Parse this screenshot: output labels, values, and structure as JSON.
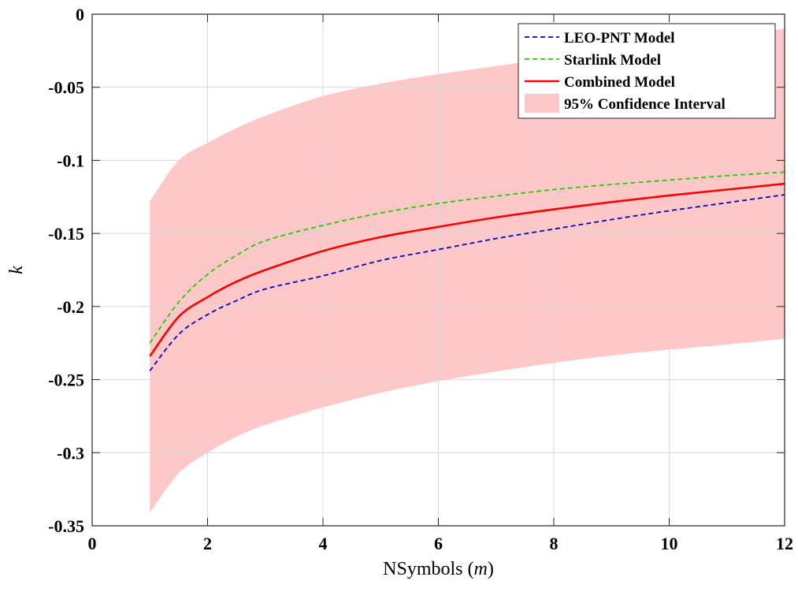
{
  "chart_data": {
    "type": "line",
    "xlabel": "NSymbols (m)",
    "xlabel_main": "NSymbols",
    "xlabel_var": "m",
    "ylabel": "k",
    "xlim": [
      0,
      12
    ],
    "ylim": [
      -0.35,
      0
    ],
    "xticks": [
      0,
      2,
      4,
      6,
      8,
      10,
      12
    ],
    "xtick_labels": [
      "0",
      "2",
      "4",
      "6",
      "8",
      "10",
      "12"
    ],
    "yticks": [
      0,
      -0.05,
      -0.1,
      -0.15,
      -0.2,
      -0.25,
      -0.3,
      -0.35
    ],
    "ytick_labels": [
      "0",
      "-0.05",
      "-0.1",
      "-0.15",
      "-0.2",
      "-0.25",
      "-0.3",
      "-0.35"
    ],
    "grid": true,
    "legend_position": "top-right",
    "x": [
      1,
      1.5,
      2,
      2.5,
      3,
      4,
      5,
      6,
      7,
      8,
      9,
      10,
      11,
      12
    ],
    "series": [
      {
        "name": "LEO-PNT Model",
        "color": "#0000cc",
        "style": "dashed",
        "values": [
          -0.244,
          -0.219,
          -0.2055,
          -0.196,
          -0.188,
          -0.179,
          -0.1685,
          -0.161,
          -0.1535,
          -0.147,
          -0.1405,
          -0.1345,
          -0.129,
          -0.1235
        ]
      },
      {
        "name": "Starlink Model",
        "color": "#22cc00",
        "style": "dashed",
        "values": [
          -0.225,
          -0.197,
          -0.178,
          -0.165,
          -0.155,
          -0.1445,
          -0.136,
          -0.1295,
          -0.1245,
          -0.12,
          -0.1165,
          -0.1135,
          -0.1105,
          -0.108
        ]
      },
      {
        "name": "Combined Model",
        "color": "#ff0000",
        "style": "solid",
        "values": [
          -0.234,
          -0.207,
          -0.1935,
          -0.183,
          -0.175,
          -0.162,
          -0.1525,
          -0.1455,
          -0.139,
          -0.1335,
          -0.1285,
          -0.124,
          -0.12,
          -0.116
        ]
      }
    ],
    "band": {
      "name": "95% Confidence Interval",
      "color": "#ffc8c8",
      "upper": [
        -0.128,
        -0.1,
        -0.088,
        -0.078,
        -0.0695,
        -0.056,
        -0.0475,
        -0.041,
        -0.0355,
        -0.03,
        -0.025,
        -0.02,
        -0.015,
        -0.01
      ],
      "lower": [
        -0.341,
        -0.314,
        -0.3,
        -0.289,
        -0.281,
        -0.269,
        -0.259,
        -0.251,
        -0.2445,
        -0.2385,
        -0.2335,
        -0.2295,
        -0.226,
        -0.222
      ]
    }
  }
}
